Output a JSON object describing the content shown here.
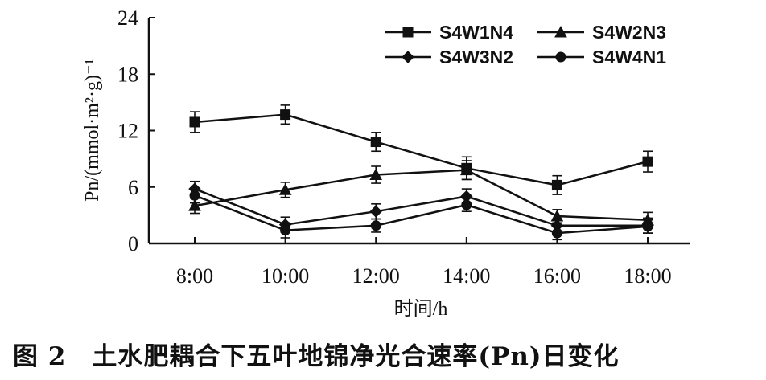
{
  "chart_data": {
    "type": "line",
    "caption": "图 2　土水肥耦合下五叶地锦净光合速率(Pn)日变化",
    "xlabel": "时间/h",
    "ylabel": "Pn/(mmol·m²·g)⁻¹",
    "categories": [
      "8:00",
      "10:00",
      "12:00",
      "14:00",
      "16:00",
      "18:00"
    ],
    "ylim": [
      0,
      24
    ],
    "yticks": [
      "0",
      "6",
      "12",
      "18",
      "24"
    ],
    "legend_position": "top-right",
    "grid": false,
    "series": [
      {
        "name": "S4W1N4",
        "marker": "square",
        "values": [
          12.9,
          13.7,
          10.8,
          8.0,
          6.2,
          8.7
        ],
        "errors": [
          1.1,
          1.0,
          1.0,
          1.2,
          1.0,
          1.1
        ]
      },
      {
        "name": "S4W2N3",
        "marker": "triangle",
        "values": [
          4.0,
          5.7,
          7.3,
          7.8,
          2.9,
          2.5
        ],
        "errors": [
          0.8,
          0.8,
          0.9,
          1.0,
          0.7,
          0.8
        ]
      },
      {
        "name": "S4W3N2",
        "marker": "diamond",
        "values": [
          5.8,
          2.0,
          3.4,
          5.0,
          1.9,
          1.9
        ],
        "errors": [
          0.8,
          0.8,
          0.8,
          0.8,
          0.7,
          0.8
        ]
      },
      {
        "name": "S4W4N1",
        "marker": "circle",
        "values": [
          5.1,
          1.4,
          1.9,
          4.1,
          1.1,
          1.8
        ],
        "errors": [
          0.8,
          0.8,
          0.7,
          0.7,
          0.7,
          0.7
        ]
      }
    ]
  }
}
